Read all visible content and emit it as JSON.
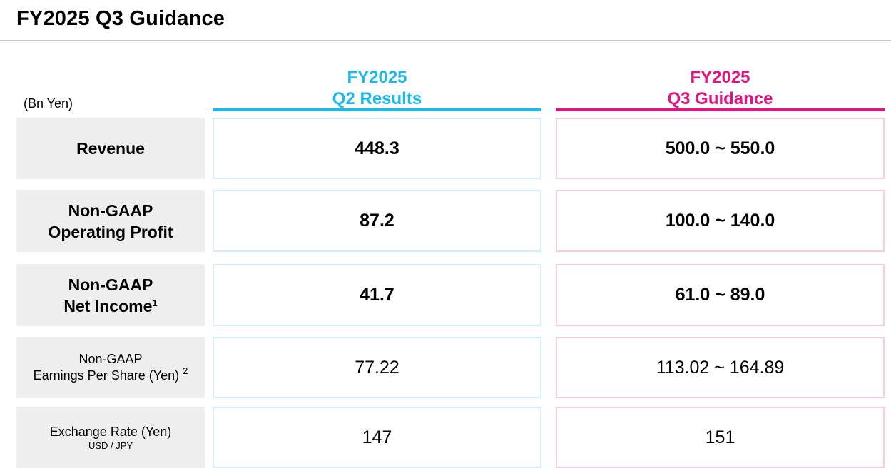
{
  "title": "FY2025 Q3 Guidance",
  "unit": "(Bn Yen)",
  "columns": {
    "q2": {
      "line1": "FY2025",
      "line2": "Q2 Results",
      "color": "#1cb8e6"
    },
    "q3": {
      "line1": "FY2025",
      "line2": "Q3 Guidance",
      "color": "#e0157f"
    }
  },
  "rows": [
    {
      "label_line1": "Revenue",
      "label_line2": "",
      "q2": "448.3",
      "q3": "500.0 ~ 550.0"
    },
    {
      "label_line1": "Non-GAAP",
      "label_line2": "Operating Profit",
      "q2": "87.2",
      "q3": "100.0 ~ 140.0"
    },
    {
      "label_line1": "Non-GAAP",
      "label_line2": "Net Income",
      "footnote": "1",
      "q2": "41.7",
      "q3": "61.0 ~ 89.0"
    },
    {
      "label_line1": "Non-GAAP",
      "label_line2": "Earnings Per Share (Yen)",
      "footnote": "2",
      "q2": "77.22",
      "q3": "113.02 ~ 164.89"
    },
    {
      "label_line1": "Exchange Rate (Yen)",
      "label_sub": "USD / JPY",
      "q2": "147",
      "q3": "151"
    }
  ]
}
